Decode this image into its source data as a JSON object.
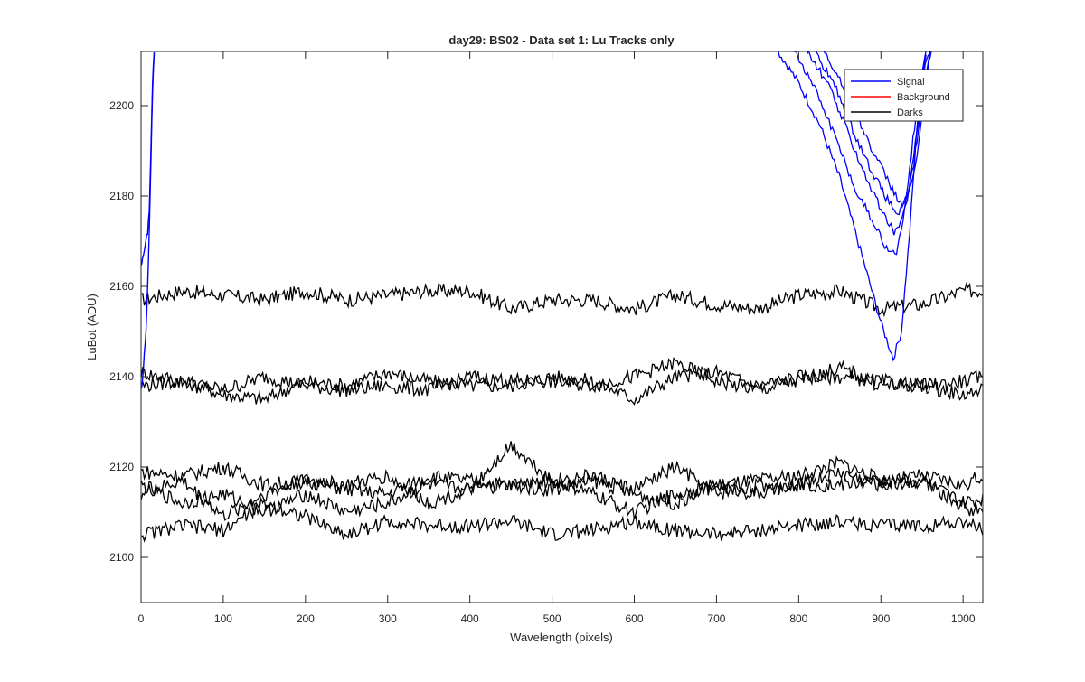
{
  "chart_data": {
    "type": "line",
    "title": "day29: BS02 - Data set 1: Lu Tracks only",
    "xlabel": "Wavelength (pixels)",
    "ylabel": "LuBot (ADU)",
    "xlim": [
      0,
      1024
    ],
    "ylim": [
      2090,
      2212
    ],
    "xticks": [
      0,
      100,
      200,
      300,
      400,
      500,
      600,
      700,
      800,
      900,
      1000
    ],
    "yticks": [
      2100,
      2120,
      2140,
      2160,
      2180,
      2200
    ],
    "grid": false,
    "legend_position": "top-right",
    "legend": [
      {
        "name": "Signal",
        "color": "#0000ff"
      },
      {
        "name": "Background",
        "color": "#ff0000"
      },
      {
        "name": "Darks",
        "color": "#000000"
      }
    ],
    "signal_left_edge": [
      {
        "x": [
          0,
          2,
          4,
          6,
          8,
          10,
          12,
          14,
          16
        ],
        "y": [
          2165,
          2166,
          2168,
          2170,
          2172,
          2177,
          2190,
          2205,
          2212
        ]
      },
      {
        "x": [
          0,
          2,
          4,
          6,
          8,
          10,
          12,
          14,
          16
        ],
        "y": [
          2137,
          2140,
          2145,
          2150,
          2160,
          2172,
          2188,
          2203,
          2212
        ]
      }
    ],
    "signal_right_curves": [
      {
        "x": [
          775,
          800,
          825,
          850,
          875,
          900,
          915,
          925,
          935,
          945,
          955
        ],
        "y": [
          2212,
          2205,
          2196,
          2184,
          2168,
          2152,
          2144,
          2150,
          2172,
          2198,
          2212
        ]
      },
      {
        "x": [
          795,
          820,
          845,
          870,
          895,
          910,
          920,
          930,
          940,
          950,
          955
        ],
        "y": [
          2212,
          2204,
          2193,
          2181,
          2173,
          2167,
          2168,
          2178,
          2194,
          2208,
          2212
        ]
      },
      {
        "x": [
          810,
          835,
          860,
          880,
          900,
          915,
          925,
          935,
          945,
          952,
          958
        ],
        "y": [
          2212,
          2205,
          2194,
          2185,
          2177,
          2172,
          2174,
          2182,
          2196,
          2207,
          2212
        ]
      },
      {
        "x": [
          820,
          845,
          865,
          885,
          905,
          920,
          930,
          940,
          948,
          955,
          960
        ],
        "y": [
          2212,
          2204,
          2195,
          2187,
          2180,
          2176,
          2178,
          2187,
          2198,
          2208,
          2212
        ]
      },
      {
        "x": [
          830,
          850,
          870,
          890,
          910,
          925,
          935,
          945,
          952,
          958,
          962
        ],
        "y": [
          2212,
          2206,
          2198,
          2190,
          2183,
          2178,
          2181,
          2190,
          2200,
          2209,
          2212
        ]
      }
    ],
    "darks": [
      {
        "name": "",
        "x": [
          0,
          50,
          100,
          150,
          200,
          250,
          300,
          350,
          400,
          450,
          500,
          550,
          600,
          650,
          700,
          750,
          800,
          850,
          900,
          950,
          1000,
          1024
        ],
        "y": [
          2157,
          2159,
          2158,
          2157,
          2159,
          2157,
          2158,
          2159,
          2159,
          2155,
          2157,
          2157,
          2155,
          2158,
          2156,
          2155,
          2158,
          2159,
          2155,
          2156,
          2159,
          2159
        ]
      },
      {
        "name": "",
        "x": [
          0,
          50,
          100,
          150,
          200,
          250,
          300,
          350,
          400,
          450,
          500,
          550,
          600,
          650,
          700,
          750,
          800,
          850,
          900,
          950,
          1000,
          1024
        ],
        "y": [
          2141,
          2139,
          2136,
          2135,
          2139,
          2138,
          2141,
          2139,
          2138,
          2138,
          2140,
          2139,
          2135,
          2140,
          2141,
          2138,
          2140,
          2140,
          2139,
          2138,
          2139,
          2140
        ]
      },
      {
        "name": "",
        "x": [
          0,
          50,
          100,
          150,
          200,
          250,
          300,
          350,
          400,
          450,
          500,
          550,
          600,
          650,
          700,
          750,
          800,
          850,
          900,
          950,
          1000,
          1024
        ],
        "y": [
          2138,
          2139,
          2137,
          2140,
          2138,
          2137,
          2138,
          2137,
          2140,
          2139,
          2139,
          2138,
          2140,
          2143,
          2139,
          2137,
          2139,
          2142,
          2138,
          2138,
          2136,
          2137
        ]
      },
      {
        "name": "",
        "x": [
          0,
          50,
          100,
          150,
          200,
          250,
          300,
          350,
          400,
          450,
          500,
          550,
          600,
          650,
          700,
          750,
          800,
          850,
          900,
          950,
          1000,
          1024
        ],
        "y": [
          2119,
          2118,
          2120,
          2116,
          2117,
          2115,
          2114,
          2118,
          2117,
          2116,
          2115,
          2117,
          2114,
          2112,
          2116,
          2117,
          2118,
          2121,
          2117,
          2118,
          2116,
          2118
        ]
      },
      {
        "name": "",
        "x": [
          0,
          50,
          100,
          150,
          200,
          250,
          300,
          350,
          400,
          450,
          500,
          550,
          600,
          650,
          700,
          750,
          800,
          850,
          900,
          950,
          1000,
          1024
        ],
        "y": [
          2116,
          2112,
          2114,
          2110,
          2114,
          2110,
          2112,
          2116,
          2115,
          2125,
          2117,
          2118,
          2115,
          2120,
          2114,
          2116,
          2116,
          2116,
          2117,
          2117,
          2111,
          2110
        ]
      },
      {
        "name": "",
        "x": [
          0,
          50,
          100,
          150,
          200,
          250,
          300,
          350,
          400,
          450,
          500,
          550,
          600,
          650,
          700,
          750,
          800,
          850,
          900,
          950,
          1000,
          1024
        ],
        "y": [
          2114,
          2117,
          2109,
          2114,
          2117,
          2116,
          2118,
          2112,
          2115,
          2116,
          2117,
          2114,
          2110,
          2114,
          2116,
          2114,
          2116,
          2119,
          2116,
          2117,
          2112,
          2113
        ]
      },
      {
        "name": "",
        "x": [
          0,
          50,
          100,
          150,
          200,
          250,
          300,
          350,
          400,
          450,
          500,
          550,
          600,
          650,
          700,
          750,
          800,
          850,
          900,
          950,
          1000,
          1024
        ],
        "y": [
          2105,
          2107,
          2106,
          2112,
          2109,
          2105,
          2108,
          2107,
          2107,
          2108,
          2105,
          2106,
          2108,
          2106,
          2105,
          2106,
          2107,
          2108,
          2107,
          2107,
          2108,
          2106
        ]
      }
    ]
  }
}
